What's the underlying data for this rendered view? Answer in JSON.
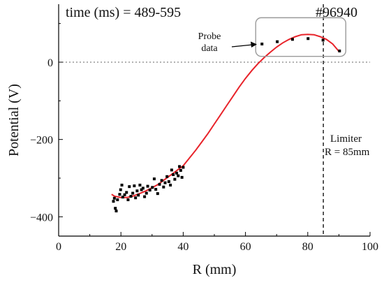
{
  "chart_data": {
    "type": "scatter",
    "title": "",
    "annotations": {
      "time_label": "time (ms) = 489-595",
      "shot_number": "#96940",
      "probe_label_line1": "Probe",
      "probe_label_line2": "data",
      "limiter_line1": "Limiter",
      "limiter_line2": "R = 85mm"
    },
    "xlabel": "R (mm)",
    "ylabel": "Potential (V)",
    "xlim": [
      0,
      100
    ],
    "ylim": [
      -450,
      150
    ],
    "xticks": [
      0,
      20,
      40,
      60,
      80,
      100
    ],
    "yticks": [
      -400,
      -200,
      0
    ],
    "zero_line": 0,
    "limiter_x": 85,
    "series": [
      {
        "kind": "points",
        "color": "#000000",
        "points": [
          [
            17.6,
            -360
          ],
          [
            17.9,
            -352
          ],
          [
            18.2,
            -378
          ],
          [
            18.5,
            -385
          ],
          [
            18.9,
            -356
          ],
          [
            19.6,
            -342
          ],
          [
            19.9,
            -330
          ],
          [
            20.3,
            -318
          ],
          [
            20.6,
            -349
          ],
          [
            21.2,
            -343
          ],
          [
            21.8,
            -337
          ],
          [
            22.3,
            -356
          ],
          [
            22.7,
            -322
          ],
          [
            23.2,
            -347
          ],
          [
            23.8,
            -339
          ],
          [
            24.3,
            -320
          ],
          [
            24.7,
            -351
          ],
          [
            25.2,
            -333
          ],
          [
            25.6,
            -344
          ],
          [
            26.1,
            -318
          ],
          [
            26.6,
            -330
          ],
          [
            27.1,
            -326
          ],
          [
            27.6,
            -348
          ],
          [
            28.2,
            -339
          ],
          [
            28.6,
            -321
          ],
          [
            29.3,
            -331
          ],
          [
            30.1,
            -324
          ],
          [
            30.7,
            -302
          ],
          [
            31.2,
            -329
          ],
          [
            31.8,
            -340
          ],
          [
            32.4,
            -316
          ],
          [
            33.1,
            -306
          ],
          [
            33.7,
            -323
          ],
          [
            34.2,
            -312
          ],
          [
            34.8,
            -296
          ],
          [
            35.4,
            -309
          ],
          [
            35.9,
            -318
          ],
          [
            36.3,
            -279
          ],
          [
            36.8,
            -291
          ],
          [
            37.3,
            -303
          ],
          [
            37.9,
            -287
          ],
          [
            38.4,
            -294
          ],
          [
            38.8,
            -270
          ],
          [
            39.2,
            -280
          ],
          [
            39.6,
            -298
          ],
          [
            40.0,
            -272
          ],
          [
            65.3,
            47
          ],
          [
            70.2,
            53
          ],
          [
            75.1,
            59
          ],
          [
            80.1,
            61
          ],
          [
            84.9,
            57
          ],
          [
            90.2,
            29
          ]
        ]
      },
      {
        "kind": "fit",
        "color": "#e8232a",
        "points": [
          [
            17,
            -342
          ],
          [
            18,
            -347
          ],
          [
            20,
            -350
          ],
          [
            22,
            -350
          ],
          [
            24,
            -346
          ],
          [
            26,
            -340
          ],
          [
            28,
            -333
          ],
          [
            30,
            -325
          ],
          [
            32,
            -316
          ],
          [
            34,
            -304
          ],
          [
            36,
            -292
          ],
          [
            38,
            -280
          ],
          [
            40,
            -268
          ],
          [
            42,
            -248
          ],
          [
            44,
            -228
          ],
          [
            46,
            -206
          ],
          [
            48,
            -184
          ],
          [
            50,
            -160
          ],
          [
            52,
            -136
          ],
          [
            54,
            -112
          ],
          [
            56,
            -88
          ],
          [
            58,
            -64
          ],
          [
            60,
            -42
          ],
          [
            62,
            -22
          ],
          [
            64,
            -4
          ],
          [
            66,
            12
          ],
          [
            68,
            26
          ],
          [
            70,
            39
          ],
          [
            72,
            50
          ],
          [
            74,
            59
          ],
          [
            76,
            66
          ],
          [
            78,
            71
          ],
          [
            80,
            72
          ],
          [
            82,
            71
          ],
          [
            84,
            66
          ],
          [
            86,
            59
          ],
          [
            88,
            47
          ],
          [
            90,
            28
          ]
        ]
      }
    ]
  }
}
